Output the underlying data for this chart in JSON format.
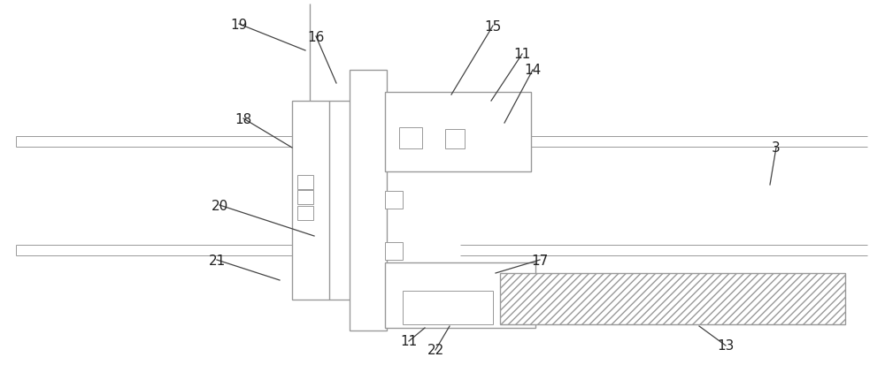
{
  "bg_color": "#ffffff",
  "lc": "#999999",
  "lc_dark": "#666666",
  "ann_color": "#444444",
  "fig_width": 10.0,
  "fig_height": 4.31,
  "dpi": 100
}
